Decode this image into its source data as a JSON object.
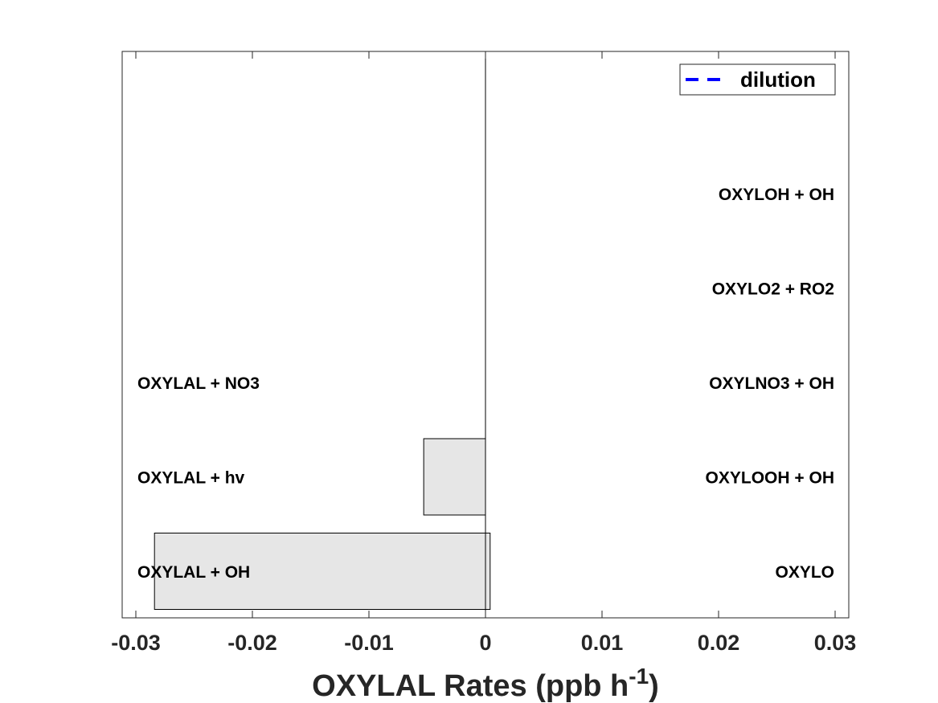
{
  "chart_data": {
    "type": "bar",
    "orientation": "horizontal",
    "xlim": [
      -0.03,
      0.03
    ],
    "xticks": [
      "-0.03",
      "-0.02",
      "-0.01",
      "0",
      "0.01",
      "0.02",
      "0.03"
    ],
    "xlabel": {
      "main": "OXYLAL Rates (ppb h",
      "superscript": "-1",
      "close": ")"
    },
    "grid": false,
    "legend": {
      "position": "top-right",
      "entries": [
        {
          "label": "dilution",
          "color": "#0000ff",
          "style": "dashed"
        }
      ]
    },
    "bar_color": "#e6e6e6",
    "categories": [
      "1",
      "2",
      "3",
      "4",
      "5",
      "6"
    ],
    "series": [
      {
        "values": [
          -0.0284,
          -0.0053,
          0,
          0,
          0,
          0
        ]
      },
      {
        "values": [
          0.0004,
          0,
          0,
          0,
          0,
          0
        ]
      }
    ],
    "loss_labels": [
      "OXYLAL + OH",
      "OXYLAL + hv",
      "OXYLAL + NO3",
      "",
      "",
      ""
    ],
    "production_labels": [
      "OXYLO",
      "OXYLOOH + OH",
      "OXYLNO3 + OH",
      "OXYLO2 + RO2",
      "OXYLOH + OH",
      ""
    ]
  }
}
